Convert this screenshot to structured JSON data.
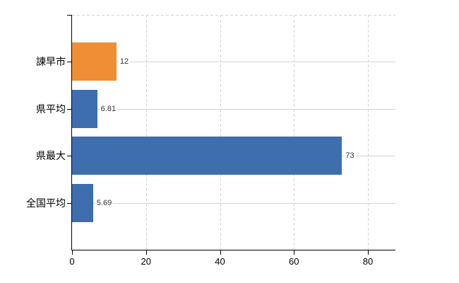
{
  "chart_data": {
    "type": "bar",
    "orientation": "horizontal",
    "title": "",
    "xlabel": "",
    "ylabel": "",
    "categories": [
      "諫早市",
      "県平均",
      "県最大",
      "全国平均"
    ],
    "values": [
      12,
      6.81,
      73,
      5.69
    ],
    "value_labels": [
      "12",
      "6.81",
      "73",
      "5.69"
    ],
    "bar_colors": [
      "#ef8e35",
      "#3e6eae",
      "#3e6eae",
      "#3e6eae"
    ],
    "highlight_color": "#ef8e35",
    "default_color": "#3e6eae",
    "x_ticks": [
      "0",
      "20",
      "40",
      "60",
      "80"
    ],
    "x_tick_values": [
      0,
      20,
      40,
      60,
      80
    ],
    "xlim": [
      0,
      87.6
    ],
    "grid": true,
    "legend": "none",
    "axis_color": "#000000",
    "gridline_color": "#d0d3d0",
    "tick_label_color": "#000000",
    "category_label_color": "#000000",
    "value_label_color": "#333333",
    "background_color": "#ffffff"
  }
}
